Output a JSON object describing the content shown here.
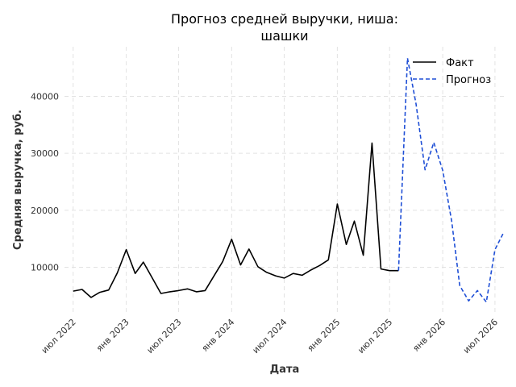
{
  "chart_data": {
    "type": "line",
    "title_lines": [
      "Прогноз средней выручки, ниша:",
      "шашки"
    ],
    "xlabel": "Дата",
    "ylabel": "Средняя выручка, руб.",
    "x_ticks": [
      {
        "date": "2022-07-01",
        "label": "июл 2022"
      },
      {
        "date": "2023-01-01",
        "label": "янв 2023"
      },
      {
        "date": "2023-07-01",
        "label": "июл 2023"
      },
      {
        "date": "2024-01-01",
        "label": "янв 2024"
      },
      {
        "date": "2024-07-01",
        "label": "июл 2024"
      },
      {
        "date": "2025-01-01",
        "label": "янв 2025"
      },
      {
        "date": "2025-07-01",
        "label": "июл 2025"
      },
      {
        "date": "2026-01-01",
        "label": "янв 2026"
      },
      {
        "date": "2026-07-01",
        "label": "июл 2026"
      }
    ],
    "y_ticks": [
      {
        "value": 10000,
        "label": "10000"
      },
      {
        "value": 20000,
        "label": "20000"
      },
      {
        "value": 30000,
        "label": "30000"
      },
      {
        "value": 40000,
        "label": "40000"
      }
    ],
    "xlim": [
      "2022-06-01",
      "2026-08-01"
    ],
    "ylim": [
      2000,
      48700
    ],
    "grid": true,
    "legend_position": "top-right",
    "series": [
      {
        "name": "Факт",
        "color": "#000000",
        "style": "solid",
        "points": [
          [
            "2022-07-01",
            5800
          ],
          [
            "2022-08-01",
            6100
          ],
          [
            "2022-09-01",
            4700
          ],
          [
            "2022-10-01",
            5600
          ],
          [
            "2022-11-01",
            6000
          ],
          [
            "2022-12-01",
            9000
          ],
          [
            "2023-01-01",
            13100
          ],
          [
            "2023-02-01",
            8900
          ],
          [
            "2023-03-01",
            10900
          ],
          [
            "2023-04-01",
            8100
          ],
          [
            "2023-05-01",
            5400
          ],
          [
            "2023-06-01",
            5700
          ],
          [
            "2023-07-01",
            5900
          ],
          [
            "2023-08-01",
            6200
          ],
          [
            "2023-09-01",
            5700
          ],
          [
            "2023-10-01",
            5900
          ],
          [
            "2023-11-01",
            8500
          ],
          [
            "2023-12-01",
            11000
          ],
          [
            "2024-01-01",
            14900
          ],
          [
            "2024-02-01",
            10400
          ],
          [
            "2024-03-01",
            13200
          ],
          [
            "2024-04-01",
            10100
          ],
          [
            "2024-05-01",
            9100
          ],
          [
            "2024-06-01",
            8500
          ],
          [
            "2024-07-01",
            8100
          ],
          [
            "2024-08-01",
            8900
          ],
          [
            "2024-09-01",
            8600
          ],
          [
            "2024-10-01",
            9500
          ],
          [
            "2024-11-01",
            10300
          ],
          [
            "2024-12-01",
            11300
          ],
          [
            "2025-01-01",
            21100
          ],
          [
            "2025-02-01",
            14000
          ],
          [
            "2025-03-01",
            18100
          ],
          [
            "2025-04-01",
            12100
          ],
          [
            "2025-05-01",
            31800
          ],
          [
            "2025-06-01",
            9700
          ],
          [
            "2025-07-01",
            9400
          ],
          [
            "2025-08-01",
            9400
          ]
        ]
      },
      {
        "name": "Прогноз",
        "color": "#1f4fd6",
        "style": "dashed",
        "points": [
          [
            "2025-08-01",
            9400
          ],
          [
            "2025-09-01",
            46700
          ],
          [
            "2025-10-01",
            38600
          ],
          [
            "2025-11-01",
            27100
          ],
          [
            "2025-12-01",
            31900
          ],
          [
            "2026-01-01",
            27000
          ],
          [
            "2026-02-01",
            18100
          ],
          [
            "2026-03-01",
            6800
          ],
          [
            "2026-04-01",
            4100
          ],
          [
            "2026-05-01",
            5900
          ],
          [
            "2026-06-01",
            3900
          ],
          [
            "2026-07-01",
            13100
          ],
          [
            "2026-08-01",
            16200
          ]
        ]
      }
    ]
  }
}
